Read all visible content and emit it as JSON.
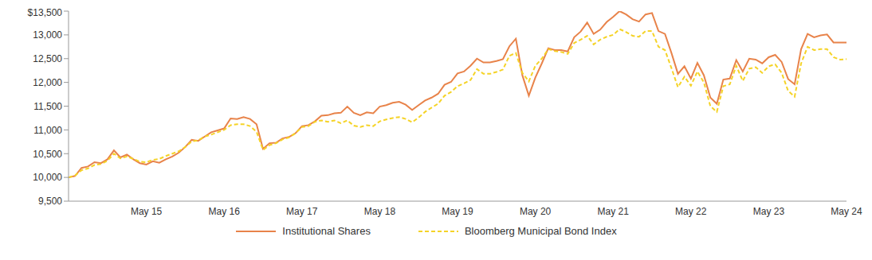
{
  "chart_data": {
    "type": "line",
    "categories": [
      null,
      null,
      null,
      null,
      null,
      null,
      null,
      null,
      null,
      null,
      null,
      null,
      "May 15",
      null,
      null,
      null,
      null,
      null,
      null,
      null,
      null,
      null,
      null,
      null,
      "May 16",
      null,
      null,
      null,
      null,
      null,
      null,
      null,
      null,
      null,
      null,
      null,
      "May 17",
      null,
      null,
      null,
      null,
      null,
      null,
      null,
      null,
      null,
      null,
      null,
      "May 18",
      null,
      null,
      null,
      null,
      null,
      null,
      null,
      null,
      null,
      null,
      null,
      "May 19",
      null,
      null,
      null,
      null,
      null,
      null,
      null,
      null,
      null,
      null,
      null,
      "May 20",
      null,
      null,
      null,
      null,
      null,
      null,
      null,
      null,
      null,
      null,
      null,
      "May 21",
      null,
      null,
      null,
      null,
      null,
      null,
      null,
      null,
      null,
      null,
      null,
      "May 22",
      null,
      null,
      null,
      null,
      null,
      null,
      null,
      null,
      null,
      null,
      null,
      "May 23",
      null,
      null,
      null,
      null,
      null,
      null,
      null,
      null,
      null,
      null,
      null,
      "May 24"
    ],
    "series": [
      {
        "name": "Institutional Shares",
        "color": "#e8834a",
        "line_style": "solid",
        "values": [
          10000,
          10030,
          10200,
          10230,
          10320,
          10300,
          10380,
          10570,
          10420,
          10480,
          10380,
          10300,
          10270,
          10340,
          10310,
          10380,
          10440,
          10520,
          10640,
          10790,
          10770,
          10860,
          10950,
          10990,
          11030,
          11240,
          11230,
          11270,
          11230,
          11120,
          10600,
          10720,
          10730,
          10820,
          10850,
          10930,
          11080,
          11100,
          11180,
          11300,
          11310,
          11350,
          11360,
          11490,
          11360,
          11310,
          11370,
          11350,
          11490,
          11520,
          11570,
          11590,
          11530,
          11420,
          11520,
          11620,
          11680,
          11760,
          11950,
          12010,
          12190,
          12230,
          12350,
          12500,
          12420,
          12420,
          12450,
          12490,
          12760,
          12920,
          12150,
          11720,
          12100,
          12400,
          12720,
          12680,
          12680,
          12650,
          12950,
          13070,
          13260,
          13020,
          13110,
          13270,
          13380,
          13500,
          13430,
          13330,
          13280,
          13430,
          13460,
          13080,
          13020,
          12620,
          12180,
          12340,
          12080,
          12410,
          12150,
          11680,
          11550,
          12060,
          12080,
          12470,
          12230,
          12500,
          12480,
          12400,
          12530,
          12580,
          12430,
          12070,
          11960,
          12700,
          13020,
          12950,
          12990,
          13010,
          12840,
          12840,
          12840
        ]
      },
      {
        "name": "Bloomberg Municipal Bond Index",
        "color": "#f5d327",
        "line_style": "dashed",
        "values": [
          10000,
          10040,
          10150,
          10190,
          10260,
          10280,
          10350,
          10500,
          10400,
          10440,
          10390,
          10330,
          10320,
          10370,
          10390,
          10450,
          10500,
          10550,
          10640,
          10760,
          10780,
          10860,
          10900,
          10950,
          11000,
          11100,
          11120,
          11120,
          11080,
          10960,
          10580,
          10680,
          10720,
          10800,
          10840,
          10930,
          11060,
          11080,
          11170,
          11200,
          11170,
          11200,
          11140,
          11200,
          11090,
          11060,
          11100,
          11080,
          11180,
          11220,
          11250,
          11270,
          11230,
          11160,
          11260,
          11380,
          11470,
          11550,
          11720,
          11800,
          11920,
          11980,
          12050,
          12280,
          12180,
          12180,
          12220,
          12270,
          12560,
          12620,
          12200,
          12020,
          12350,
          12500,
          12700,
          12660,
          12640,
          12600,
          12830,
          12900,
          12980,
          12800,
          12900,
          12960,
          13000,
          13120,
          13060,
          12980,
          12960,
          13080,
          13080,
          12750,
          12680,
          12300,
          11900,
          12120,
          11930,
          12230,
          12000,
          11500,
          11380,
          11920,
          11960,
          12350,
          12030,
          12290,
          12320,
          12200,
          12340,
          12380,
          12200,
          11820,
          11700,
          12400,
          12750,
          12680,
          12700,
          12700,
          12530,
          12480,
          12490
        ]
      }
    ],
    "ylim": [
      9500,
      13500
    ],
    "yticks": [
      {
        "value": 9500,
        "label": "9,500"
      },
      {
        "value": 10000,
        "label": "10,000"
      },
      {
        "value": 10500,
        "label": "10,500"
      },
      {
        "value": 11000,
        "label": "11,000"
      },
      {
        "value": 11500,
        "label": "11,500"
      },
      {
        "value": 12000,
        "label": "12,000"
      },
      {
        "value": 12500,
        "label": "12,500"
      },
      {
        "value": 13000,
        "label": "13,000"
      },
      {
        "value": 13500,
        "label": "$13,500"
      }
    ],
    "grid": false,
    "legend": "bottom"
  }
}
